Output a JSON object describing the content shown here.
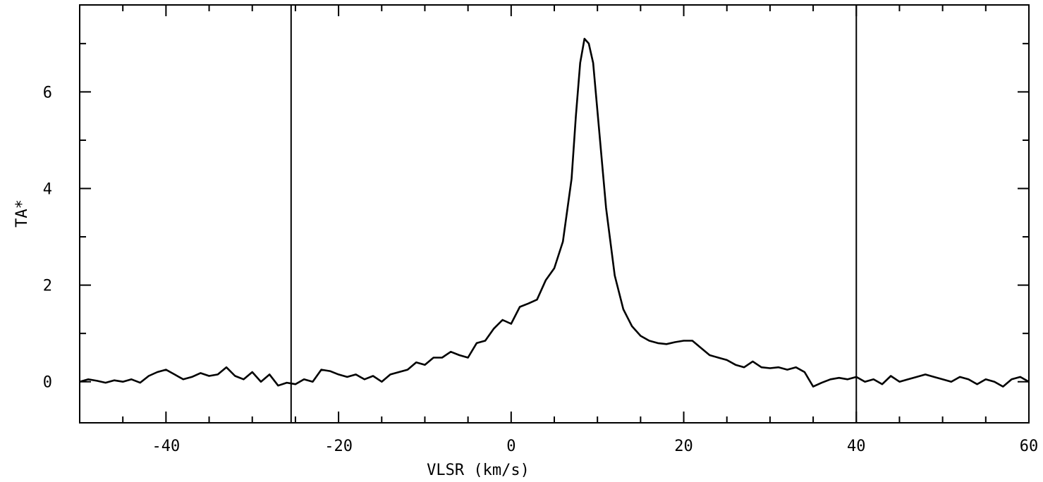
{
  "chart_data": {
    "type": "line",
    "title": "",
    "xlabel": "VLSR (km/s)",
    "ylabel": "TA*",
    "xlim": [
      -50,
      60
    ],
    "ylim": [
      -0.85,
      7.8
    ],
    "grid": false,
    "x_ticks": [
      -40,
      -20,
      0,
      20,
      40,
      60
    ],
    "x_tick_labels": [
      "-40",
      "-20",
      "0",
      "20",
      "40",
      "60"
    ],
    "y_ticks": [
      0,
      2,
      4,
      6
    ],
    "y_tick_labels": [
      "0",
      "2",
      "4",
      "6"
    ],
    "vertical_markers": [
      -25.5,
      40
    ],
    "series": [
      {
        "x": [
          -50,
          -49,
          -48,
          -47,
          -46,
          -45,
          -44,
          -43,
          -42,
          -41,
          -40,
          -39,
          -38,
          -37,
          -36,
          -35,
          -34,
          -33,
          -32,
          -31,
          -30,
          -29,
          -28,
          -27,
          -26,
          -25,
          -24,
          -23,
          -22,
          -21,
          -20,
          -19,
          -18,
          -17,
          -16,
          -15,
          -14,
          -13,
          -12,
          -11,
          -10,
          -9,
          -8,
          -7,
          -6,
          -5,
          -4,
          -3,
          -2,
          -1,
          0,
          1,
          2,
          3,
          4,
          5,
          6,
          7,
          7.5,
          8,
          8.5,
          9,
          9.5,
          10,
          11,
          12,
          13,
          14,
          15,
          16,
          17,
          18,
          19,
          20,
          21,
          22,
          23,
          24,
          25,
          26,
          27,
          28,
          29,
          30,
          31,
          32,
          33,
          34,
          35,
          36,
          37,
          38,
          39,
          40,
          41,
          42,
          43,
          44,
          45,
          46,
          47,
          48,
          49,
          50,
          51,
          52,
          53,
          54,
          55,
          56,
          57,
          58,
          59,
          60
        ],
        "y": [
          0.0,
          0.05,
          0.02,
          -0.02,
          0.03,
          0.0,
          0.05,
          -0.02,
          0.12,
          0.2,
          0.25,
          0.15,
          0.05,
          0.1,
          0.18,
          0.12,
          0.15,
          0.3,
          0.12,
          0.05,
          0.2,
          0.0,
          0.15,
          -0.08,
          -0.02,
          -0.05,
          0.05,
          0.0,
          0.25,
          0.22,
          0.15,
          0.1,
          0.15,
          0.05,
          0.12,
          0.0,
          0.15,
          0.2,
          0.25,
          0.4,
          0.35,
          0.5,
          0.5,
          0.62,
          0.55,
          0.5,
          0.8,
          0.85,
          1.1,
          1.28,
          1.2,
          1.55,
          1.62,
          1.7,
          2.1,
          2.35,
          2.9,
          4.2,
          5.5,
          6.6,
          7.1,
          7.0,
          6.6,
          5.6,
          3.6,
          2.2,
          1.5,
          1.15,
          0.95,
          0.85,
          0.8,
          0.78,
          0.82,
          0.85,
          0.85,
          0.7,
          0.55,
          0.5,
          0.45,
          0.35,
          0.3,
          0.42,
          0.3,
          0.28,
          0.3,
          0.25,
          0.3,
          0.2,
          -0.1,
          -0.02,
          0.05,
          0.08,
          0.05,
          0.1,
          0.0,
          0.05,
          -0.05,
          0.12,
          0.0,
          0.05,
          0.1,
          0.15,
          0.1,
          0.05,
          0.0,
          0.1,
          0.05,
          -0.05,
          0.05,
          0.0,
          -0.1,
          0.05,
          0.1,
          0.0
        ]
      }
    ]
  }
}
